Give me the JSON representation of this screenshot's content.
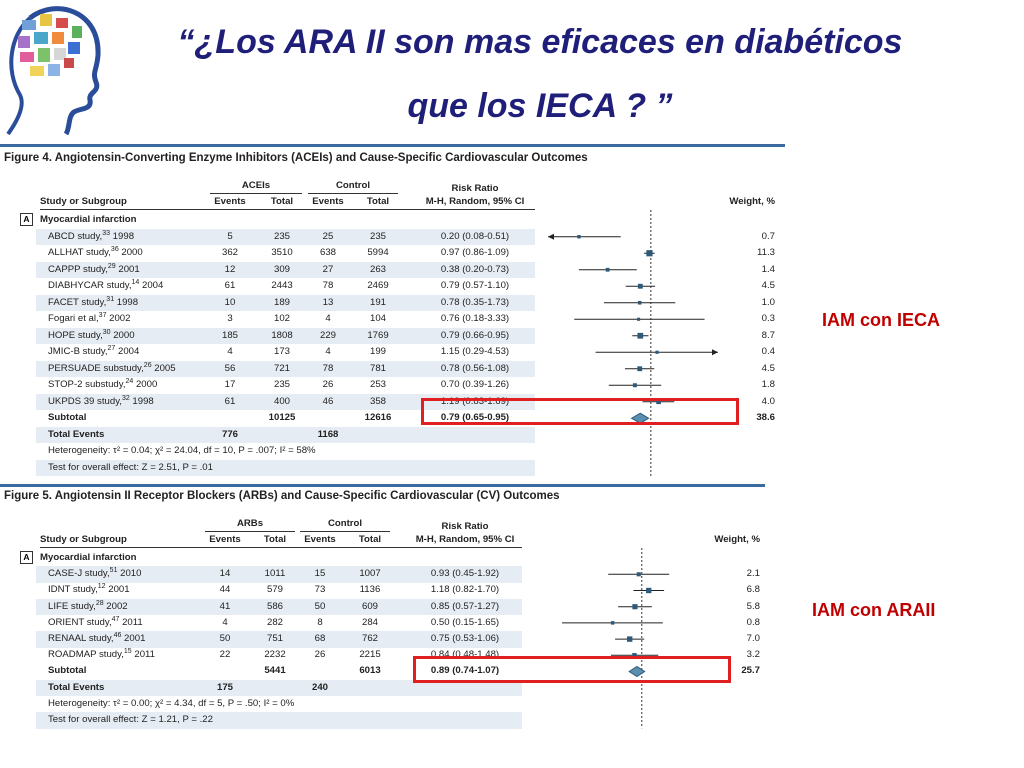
{
  "slide": {
    "title_line1": "“¿Los ARA II son mas eficaces en diabéticos",
    "title_line2": "que los IECA ? ”",
    "callout1": "IAM con IECA",
    "callout2": "IAM con ARAII"
  },
  "chart_data": [
    {
      "type": "table",
      "title": "Figure 4. Angiotensin-Converting Enzyme Inhibitors (ACEIs) and Cause-Specific Cardiovascular Outcomes",
      "headers": {
        "study": "Study or Subgroup",
        "group1": "ACEIs",
        "group2": "Control",
        "events": "Events",
        "total": "Total",
        "rr1": "Risk Ratio",
        "rr2": "M-H, Random, 95% CI",
        "weight": "Weight, %"
      },
      "section_label": "A",
      "section_title": "Myocardial infarction",
      "rows": [
        {
          "study": "ABCD study,",
          "ref": "33",
          "year": " 1998",
          "e1": "5",
          "t1": "235",
          "e2": "25",
          "t2": "235",
          "ci": "0.20 (0.08-0.51)",
          "rr": 0.2,
          "lo": 0.08,
          "hi": 0.51,
          "weight": "0.7",
          "w": 0.7
        },
        {
          "study": "ALLHAT study,",
          "ref": "36",
          "year": " 2000",
          "e1": "362",
          "t1": "3510",
          "e2": "638",
          "t2": "5994",
          "ci": "0.97 (0.86-1.09)",
          "rr": 0.97,
          "lo": 0.86,
          "hi": 1.09,
          "weight": "11.3",
          "w": 11.3
        },
        {
          "study": "CAPPP study,",
          "ref": "29",
          "year": " 2001",
          "e1": "12",
          "t1": "309",
          "e2": "27",
          "t2": "263",
          "ci": "0.38 (0.20-0.73)",
          "rr": 0.38,
          "lo": 0.2,
          "hi": 0.73,
          "weight": "1.4",
          "w": 1.4
        },
        {
          "study": "DIABHYCAR study,",
          "ref": "14",
          "year": " 2004",
          "e1": "61",
          "t1": "2443",
          "e2": "78",
          "t2": "2469",
          "ci": "0.79 (0.57-1.10)",
          "rr": 0.79,
          "lo": 0.57,
          "hi": 1.1,
          "weight": "4.5",
          "w": 4.5
        },
        {
          "study": "FACET study,",
          "ref": "31",
          "year": " 1998",
          "e1": "10",
          "t1": "189",
          "e2": "13",
          "t2": "191",
          "ci": "0.78 (0.35-1.73)",
          "rr": 0.78,
          "lo": 0.35,
          "hi": 1.73,
          "weight": "1.0",
          "w": 1.0
        },
        {
          "study": "Fogari et al,",
          "ref": "37",
          "year": " 2002",
          "e1": "3",
          "t1": "102",
          "e2": "4",
          "t2": "104",
          "ci": "0.76 (0.18-3.33)",
          "rr": 0.76,
          "lo": 0.18,
          "hi": 3.33,
          "weight": "0.3",
          "w": 0.3
        },
        {
          "study": "HOPE study,",
          "ref": "30",
          "year": " 2000",
          "e1": "185",
          "t1": "1808",
          "e2": "229",
          "t2": "1769",
          "ci": "0.79 (0.66-0.95)",
          "rr": 0.79,
          "lo": 0.66,
          "hi": 0.95,
          "weight": "8.7",
          "w": 8.7
        },
        {
          "study": "JMIC-B study,",
          "ref": "27",
          "year": " 2004",
          "e1": "4",
          "t1": "173",
          "e2": "4",
          "t2": "199",
          "ci": "1.15 (0.29-4.53)",
          "rr": 1.15,
          "lo": 0.29,
          "hi": 4.53,
          "weight": "0.4",
          "w": 0.4
        },
        {
          "study": "PERSUADE substudy,",
          "ref": "26",
          "year": " 2005",
          "e1": "56",
          "t1": "721",
          "e2": "78",
          "t2": "781",
          "ci": "0.78 (0.56-1.08)",
          "rr": 0.78,
          "lo": 0.56,
          "hi": 1.08,
          "weight": "4.5",
          "w": 4.5
        },
        {
          "study": "STOP-2 substudy,",
          "ref": "24",
          "year": " 2000",
          "e1": "17",
          "t1": "235",
          "e2": "26",
          "t2": "253",
          "ci": "0.70 (0.39-1.26)",
          "rr": 0.7,
          "lo": 0.39,
          "hi": 1.26,
          "weight": "1.8",
          "w": 1.8
        },
        {
          "study": "UKPDS 39 study,",
          "ref": "32",
          "year": " 1998",
          "e1": "61",
          "t1": "400",
          "e2": "46",
          "t2": "358",
          "ci": "1.19 (0.83-1.69)",
          "rr": 1.19,
          "lo": 0.83,
          "hi": 1.69,
          "weight": "4.0",
          "w": 4.0
        }
      ],
      "subtotal": {
        "label": "Subtotal",
        "t1": "10125",
        "t2": "12616",
        "ci": "0.79 (0.65-0.95)",
        "rr": 0.79,
        "lo": 0.65,
        "hi": 0.95,
        "weight": "38.6"
      },
      "total_events": {
        "label": "Total Events",
        "e1": "776",
        "e2": "1168"
      },
      "heterogeneity": "Heterogeneity: τ² = 0.04; χ² = 24.04, df = 10, P = .007; I² = 58%",
      "overall_effect": "Test for overall effect: Z = 2.51, P = .01"
    },
    {
      "type": "table",
      "title": "Figure 5. Angiotensin II Receptor Blockers (ARBs) and Cause-Specific Cardiovascular (CV) Outcomes",
      "headers": {
        "study": "Study or Subgroup",
        "group1": "ARBs",
        "group2": "Control",
        "events": "Events",
        "total": "Total",
        "rr1": "Risk Ratio",
        "rr2": "M-H, Random, 95% CI",
        "weight": "Weight, %"
      },
      "section_label": "A",
      "section_title": "Myocardial infarction",
      "rows": [
        {
          "study": "CASE-J study,",
          "ref": "51",
          "year": " 2010",
          "e1": "14",
          "t1": "1011",
          "e2": "15",
          "t2": "1007",
          "ci": "0.93 (0.45-1.92)",
          "rr": 0.93,
          "lo": 0.45,
          "hi": 1.92,
          "weight": "2.1",
          "w": 2.1
        },
        {
          "study": "IDNT study,",
          "ref": "12",
          "year": " 2001",
          "e1": "44",
          "t1": "579",
          "e2": "73",
          "t2": "1136",
          "ci": "1.18 (0.82-1.70)",
          "rr": 1.18,
          "lo": 0.82,
          "hi": 1.7,
          "weight": "6.8",
          "w": 6.8
        },
        {
          "study": "LIFE study,",
          "ref": "28",
          "year": " 2002",
          "e1": "41",
          "t1": "586",
          "e2": "50",
          "t2": "609",
          "ci": "0.85 (0.57-1.27)",
          "rr": 0.85,
          "lo": 0.57,
          "hi": 1.27,
          "weight": "5.8",
          "w": 5.8
        },
        {
          "study": "ORIENT study,",
          "ref": "47",
          "year": " 2011",
          "e1": "4",
          "t1": "282",
          "e2": "8",
          "t2": "284",
          "ci": "0.50 (0.15-1.65)",
          "rr": 0.5,
          "lo": 0.15,
          "hi": 1.65,
          "weight": "0.8",
          "w": 0.8
        },
        {
          "study": "RENAAL study,",
          "ref": "46",
          "year": " 2001",
          "e1": "50",
          "t1": "751",
          "e2": "68",
          "t2": "762",
          "ci": "0.75 (0.53-1.06)",
          "rr": 0.75,
          "lo": 0.53,
          "hi": 1.06,
          "weight": "7.0",
          "w": 7.0
        },
        {
          "study": "ROADMAP study,",
          "ref": "15",
          "year": " 2011",
          "e1": "22",
          "t1": "2232",
          "e2": "26",
          "t2": "2215",
          "ci": "0.84 (0.48-1.48)",
          "rr": 0.84,
          "lo": 0.48,
          "hi": 1.48,
          "weight": "3.2",
          "w": 3.2
        }
      ],
      "subtotal": {
        "label": "Subtotal",
        "t1": "5441",
        "t2": "6013",
        "ci": "0.89 (0.74-1.07)",
        "rr": 0.89,
        "lo": 0.74,
        "hi": 1.07,
        "weight": "25.7"
      },
      "total_events": {
        "label": "Total Events",
        "e1": "175",
        "e2": "240"
      },
      "heterogeneity": "Heterogeneity: τ² = 0.00; χ² = 4.34, df = 5, P = .50; I² = 0%",
      "overall_effect": "Test for overall effect: Z = 1.21, P = .22"
    }
  ]
}
